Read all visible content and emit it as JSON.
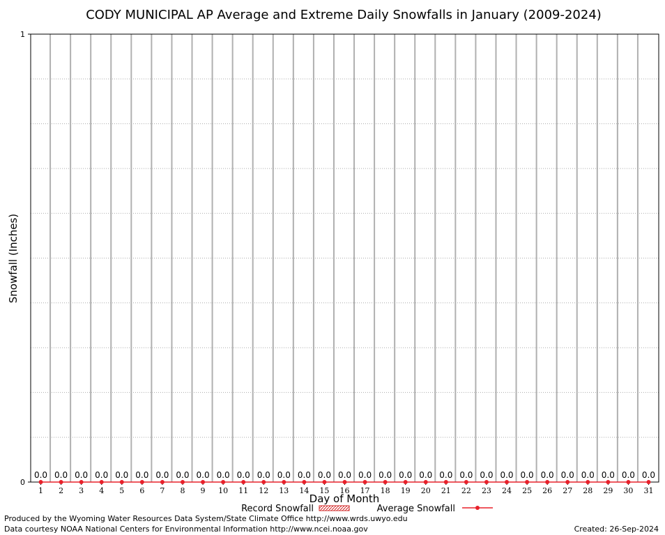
{
  "chart_data": {
    "type": "bar",
    "title": "CODY MUNICIPAL AP Average and Extreme Daily Snowfalls in January (2009-2024)",
    "xlabel": "Day of Month",
    "ylabel": "Snowfall (Inches)",
    "ylim": [
      0,
      1
    ],
    "y_ticks": [
      "0",
      "1"
    ],
    "categories": [
      "1",
      "2",
      "3",
      "4",
      "5",
      "6",
      "7",
      "8",
      "9",
      "10",
      "11",
      "12",
      "13",
      "14",
      "15",
      "16",
      "17",
      "18",
      "19",
      "20",
      "21",
      "22",
      "23",
      "24",
      "25",
      "26",
      "27",
      "28",
      "29",
      "30",
      "31"
    ],
    "series": [
      {
        "name": "Record Snowfall",
        "type": "bar",
        "color": "#d02020",
        "values": [
          0,
          0,
          0,
          0,
          0,
          0,
          0,
          0,
          0,
          0,
          0,
          0,
          0,
          0,
          0,
          0,
          0,
          0,
          0,
          0,
          0,
          0,
          0,
          0,
          0,
          0,
          0,
          0,
          0,
          0,
          0
        ]
      },
      {
        "name": "Average Snowfall",
        "type": "line",
        "color": "#e8202a",
        "values": [
          0,
          0,
          0,
          0,
          0,
          0,
          0,
          0,
          0,
          0,
          0,
          0,
          0,
          0,
          0,
          0,
          0,
          0,
          0,
          0,
          0,
          0,
          0,
          0,
          0,
          0,
          0,
          0,
          0,
          0,
          0
        ]
      }
    ],
    "data_labels": [
      "0.0",
      "0.0",
      "0.0",
      "0.0",
      "0.0",
      "0.0",
      "0.0",
      "0.0",
      "0.0",
      "0.0",
      "0.0",
      "0.0",
      "0.0",
      "0.0",
      "0.0",
      "0.0",
      "0.0",
      "0.0",
      "0.0",
      "0.0",
      "0.0",
      "0.0",
      "0.0",
      "0.0",
      "0.0",
      "0.0",
      "0.0",
      "0.0",
      "0.0",
      "0.0",
      "0.0"
    ],
    "grid": true,
    "legend_position": "bottom"
  },
  "footer": {
    "produced_by": "Produced by the Wyoming Water Resources Data System/State Climate Office http://www.wrds.uwyo.edu",
    "data_courtesy": "Data courtesy NOAA National Centers for Environmental Information http://www.ncei.noaa.gov",
    "created": "Created: 26-Sep-2024"
  }
}
